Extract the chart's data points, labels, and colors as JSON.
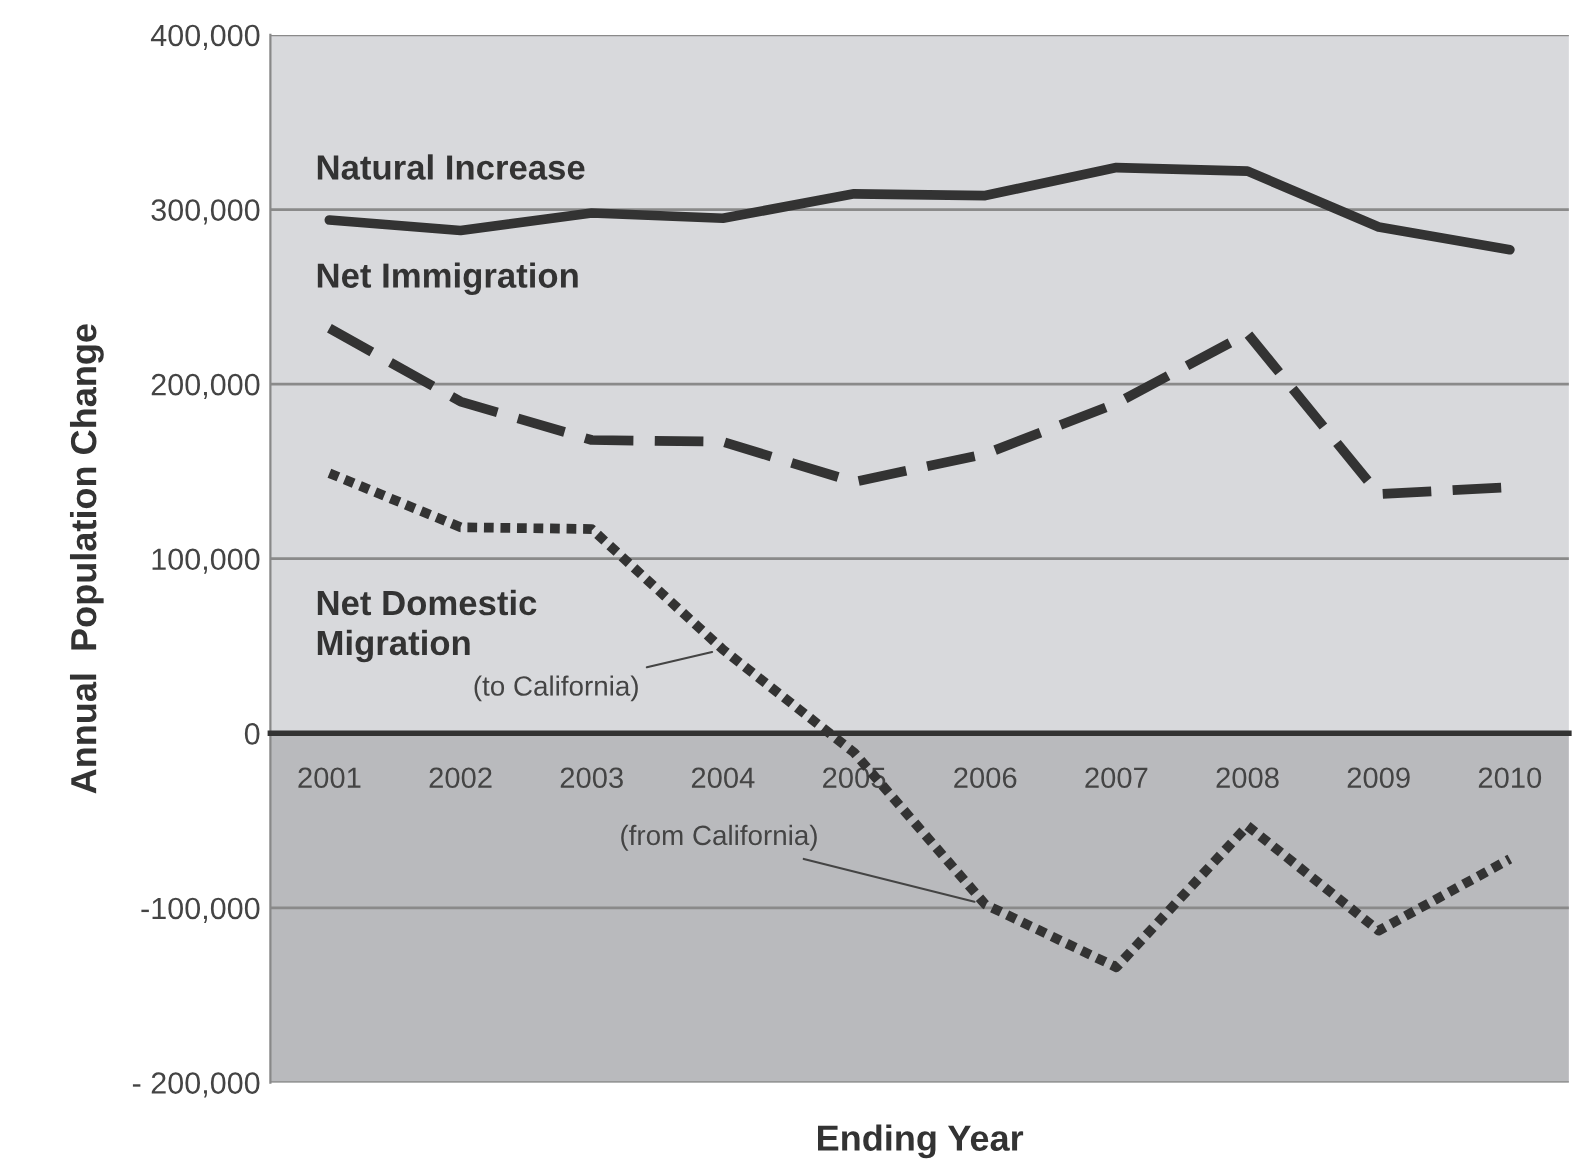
{
  "chart_data": {
    "type": "line",
    "xlabel": "Ending Year",
    "ylabel": "Annual  Population Change",
    "categories": [
      "2001",
      "2002",
      "2003",
      "2004",
      "2005",
      "2006",
      "2007",
      "2008",
      "2009",
      "2010"
    ],
    "series": [
      {
        "name": "Natural Increase",
        "color": "#333333",
        "line_style": "solid",
        "values": [
          294000,
          288000,
          298000,
          295000,
          309000,
          308000,
          324000,
          322000,
          290000,
          277000
        ]
      },
      {
        "name": "Net Immigration",
        "color": "#333333",
        "line_style": "dashed",
        "values": [
          232000,
          190000,
          168000,
          167000,
          144000,
          160000,
          189000,
          229000,
          137000,
          141000
        ]
      },
      {
        "name": "Net Domestic\nMigration",
        "color": "#333333",
        "line_style": "dotted",
        "values": [
          149000,
          118000,
          117000,
          48000,
          -11000,
          -98000,
          -134000,
          -53000,
          -113000,
          -72000
        ]
      }
    ],
    "ylim": [
      -200000,
      400000
    ],
    "yticks": [
      {
        "value": -200000,
        "label": "- 200,000"
      },
      {
        "value": -100000,
        "label": "-100,000"
      },
      {
        "value": 0,
        "label": "0"
      },
      {
        "value": 100000,
        "label": "100,000"
      },
      {
        "value": 200000,
        "label": "200,000"
      },
      {
        "value": 300000,
        "label": "300,000"
      },
      {
        "value": 400000,
        "label": "400,000"
      }
    ],
    "bands": [
      {
        "axis": "y",
        "from": -200000,
        "to": 0,
        "color": "#b9babd"
      }
    ],
    "annotations": [
      {
        "text": "(to California)",
        "x": "2004",
        "y": 48000
      },
      {
        "text": "(from California)",
        "x": "2006",
        "y": -98000
      }
    ],
    "grid": "y",
    "legend": false,
    "marker": "none"
  }
}
